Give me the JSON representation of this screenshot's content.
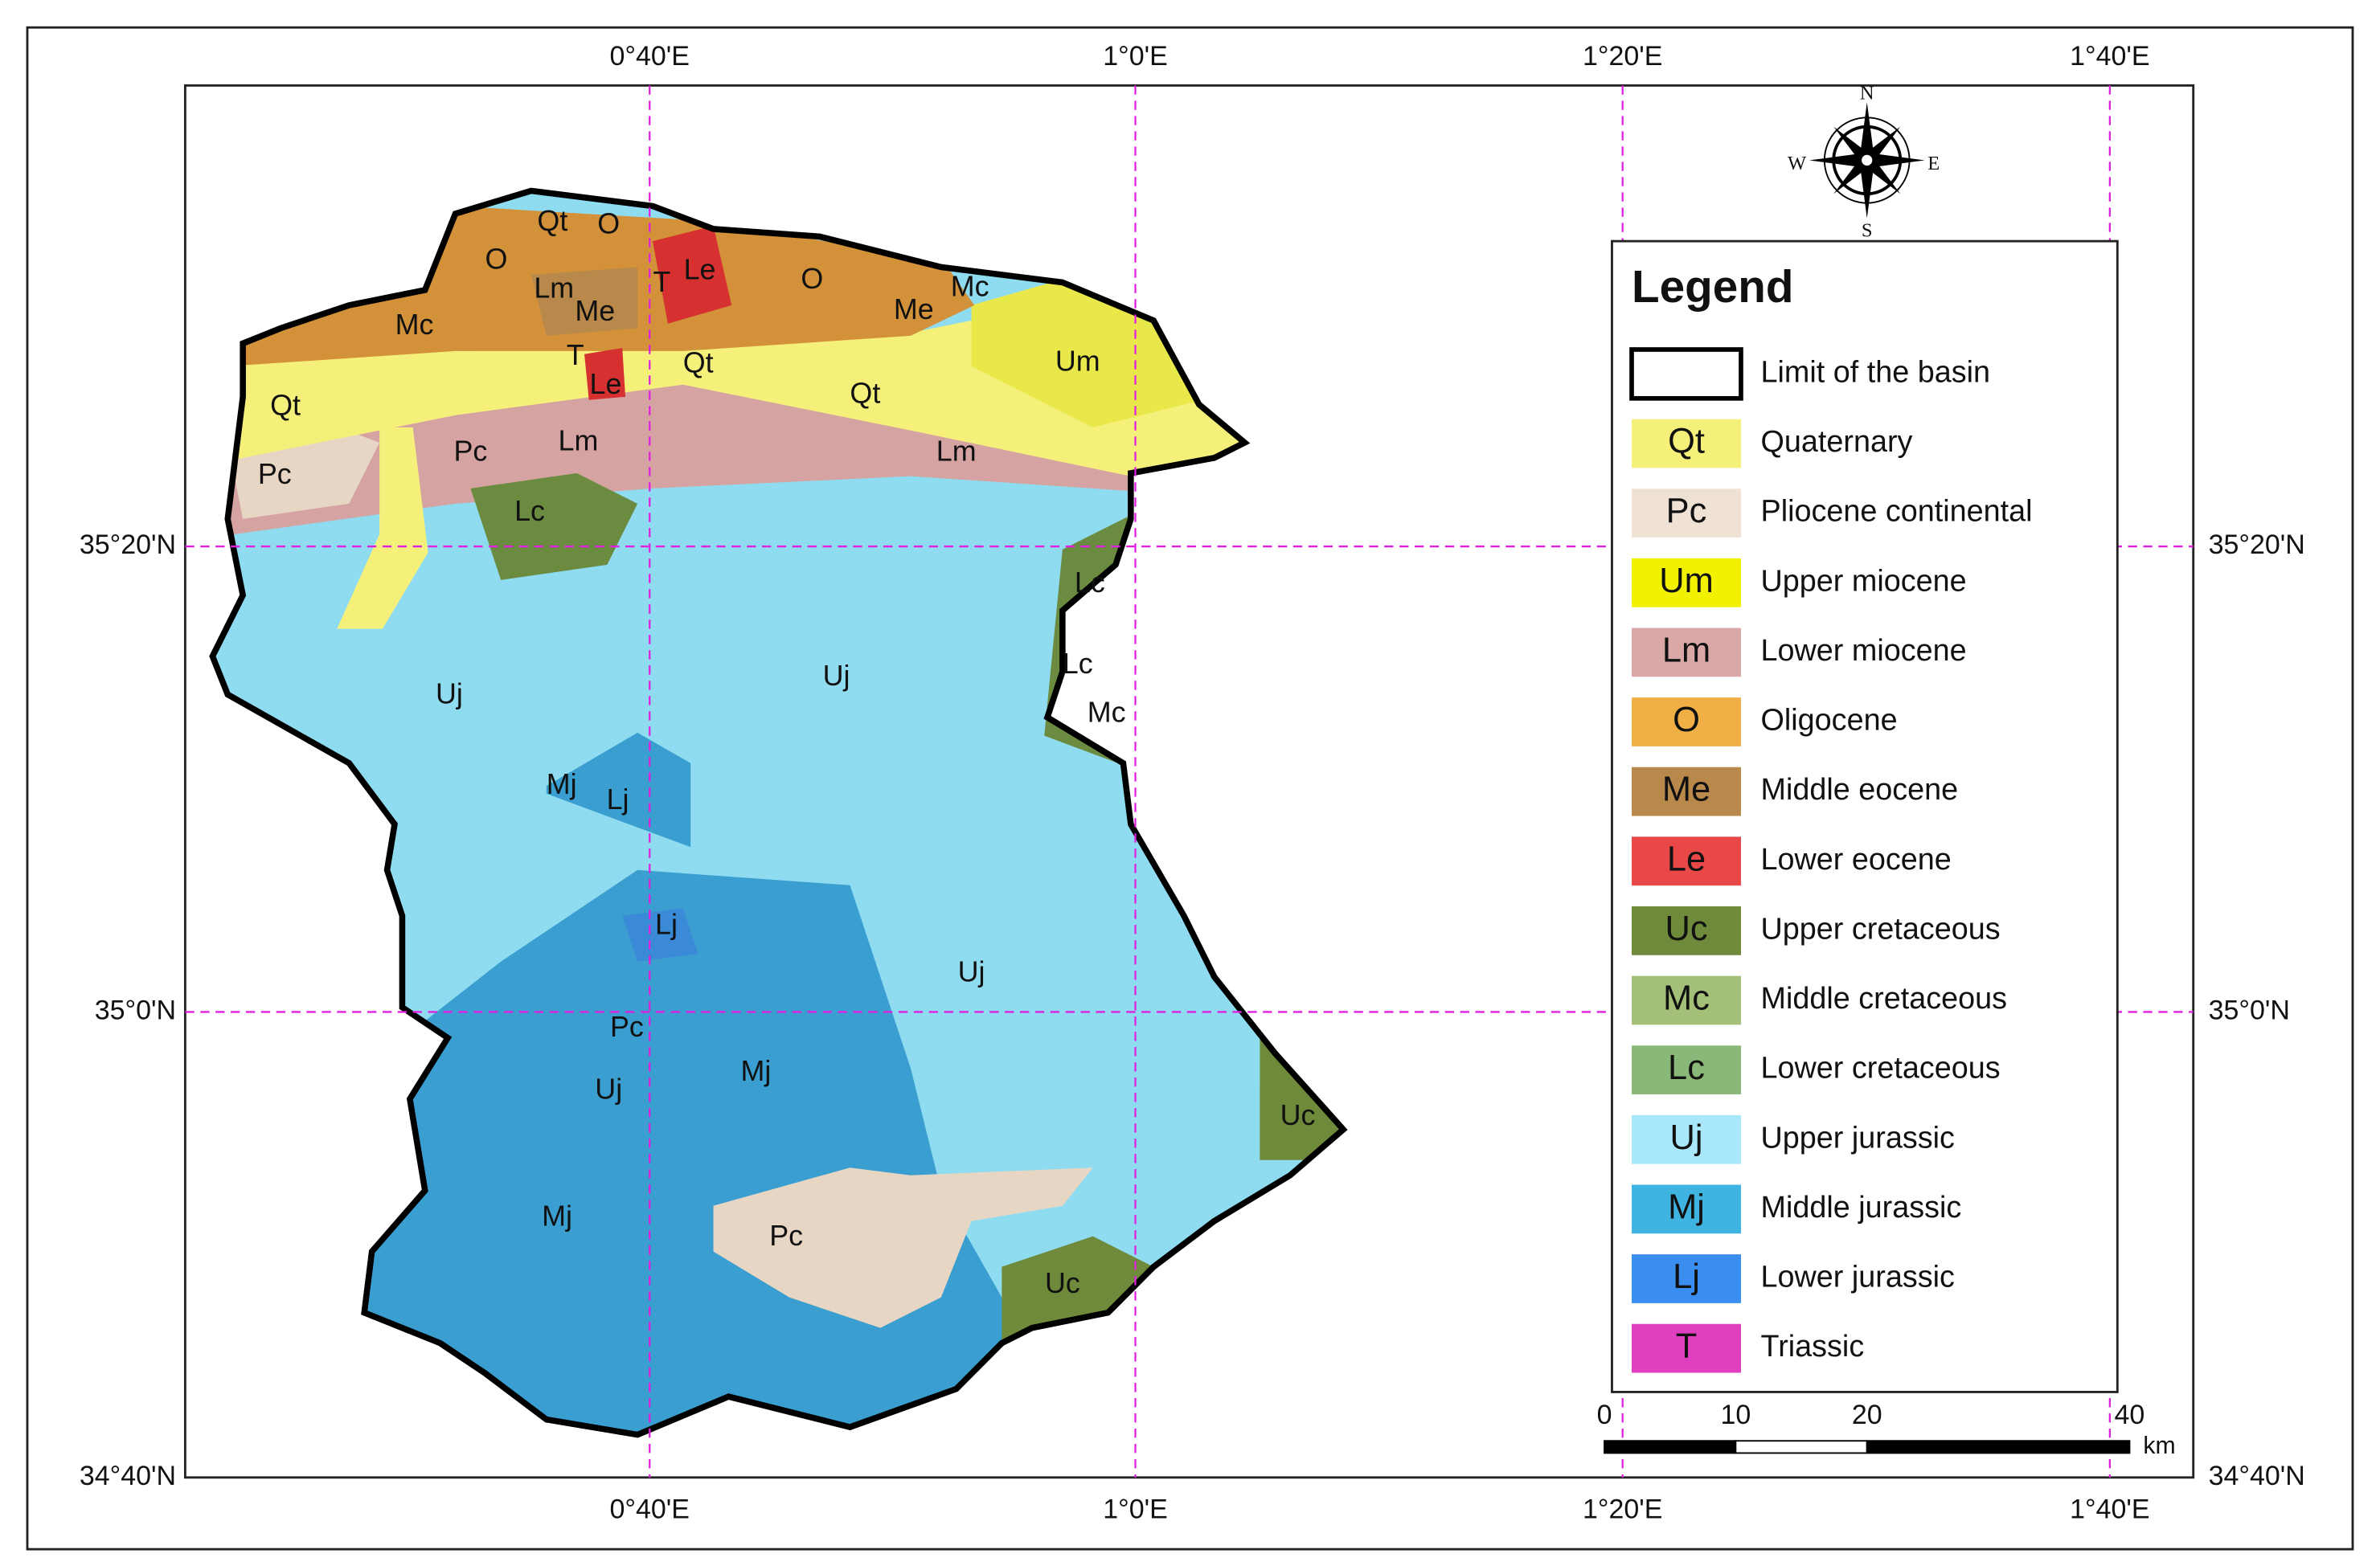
{
  "map": {
    "lon_labels": [
      "0°40'E",
      "1°0'E",
      "1°20'E",
      "1°40'E"
    ],
    "lat_labels": [
      "35°20'N",
      "35°0'N",
      "34°40'N"
    ],
    "labels": [
      "Qt",
      "O",
      "O",
      "Lm",
      "T",
      "Le",
      "O",
      "Me",
      "Mc",
      "Mc",
      "Me",
      "T",
      "Qt",
      "Le",
      "Um",
      "Qt",
      "Qt",
      "Lm",
      "Lm",
      "Pc",
      "Pc",
      "Lc",
      "Lc",
      "Lc",
      "Mc",
      "Uj",
      "Uj",
      "Mj",
      "Lj",
      "Lj",
      "Uj",
      "Pc",
      "Mj",
      "Uj",
      "Uc",
      "Mj",
      "Pc",
      "Uc"
    ],
    "compass": [
      "N",
      "E",
      "S",
      "W"
    ]
  },
  "legend": {
    "title": "Legend",
    "entries": [
      {
        "label": "Limit of the basin"
      },
      {
        "code": "Qt",
        "label": "Quaternary"
      },
      {
        "code": "Pc",
        "label": "Pliocene continental"
      },
      {
        "code": "Um",
        "label": "Upper miocene"
      },
      {
        "code": "Lm",
        "label": "Lower miocene"
      },
      {
        "code": "O",
        "label": "Oligocene"
      },
      {
        "code": "Me",
        "label": "Middle eocene"
      },
      {
        "code": "Le",
        "label": "Lower eocene"
      },
      {
        "code": "Uc",
        "label": "Upper cretaceous"
      },
      {
        "code": "Mc",
        "label": "Middle cretaceous"
      },
      {
        "code": "Lc",
        "label": "Lower cretaceous"
      },
      {
        "code": "Uj",
        "label": "Upper jurassic"
      },
      {
        "code": "Mj",
        "label": "Middle jurassic"
      },
      {
        "code": "Lj",
        "label": "Lower jurassic"
      },
      {
        "code": "T",
        "label": "Triassic"
      }
    ]
  },
  "scale_bar": {
    "ticks": [
      0,
      10,
      20,
      40
    ],
    "unit": "km"
  }
}
